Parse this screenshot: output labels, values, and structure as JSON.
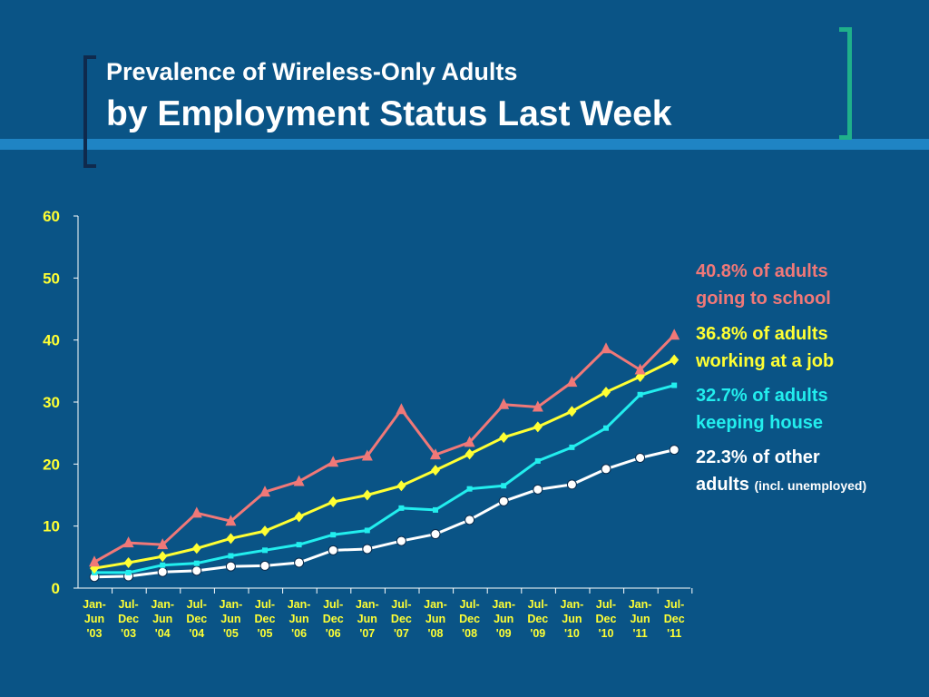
{
  "slide": {
    "title_line1": "Prevalence of Wireless-Only Adults",
    "title_line2": "by Employment Status Last Week"
  },
  "chart_data": {
    "type": "line",
    "ylim": [
      0,
      60
    ],
    "yticks": [
      "0",
      "10",
      "20",
      "30",
      "40",
      "50",
      "60"
    ],
    "categories": [
      [
        "Jan-",
        "Jun",
        "'03"
      ],
      [
        "Jul-",
        "Dec",
        "'03"
      ],
      [
        "Jan-",
        "Jun",
        "'04"
      ],
      [
        "Jul-",
        "Dec",
        "'04"
      ],
      [
        "Jan-",
        "Jun",
        "'05"
      ],
      [
        "Jul-",
        "Dec",
        "'05"
      ],
      [
        "Jan-",
        "Jun",
        "'06"
      ],
      [
        "Jul-",
        "Dec",
        "'06"
      ],
      [
        "Jan-",
        "Jun",
        "'07"
      ],
      [
        "Jul-",
        "Dec",
        "'07"
      ],
      [
        "Jan-",
        "Jun",
        "'08"
      ],
      [
        "Jul-",
        "Dec",
        "'08"
      ],
      [
        "Jan-",
        "Jun",
        "'09"
      ],
      [
        "Jul-",
        "Dec",
        "'09"
      ],
      [
        "Jan-",
        "Jun",
        "'10"
      ],
      [
        "Jul-",
        "Dec",
        "'10"
      ],
      [
        "Jan-",
        "Jun",
        "'11"
      ],
      [
        "Jul-",
        "Dec",
        "'11"
      ]
    ],
    "grid": false,
    "legend_placement": "right",
    "series": [
      {
        "color": "#f07878",
        "marker": "triangle",
        "values": [
          4.2,
          7.3,
          7.0,
          12.1,
          10.8,
          15.5,
          17.2,
          20.3,
          21.3,
          28.8,
          21.5,
          23.5,
          29.6,
          29.2,
          33.2,
          38.6,
          35.2,
          40.8
        ],
        "label_line1": "40.8% of adults",
        "label_line2": "going to school"
      },
      {
        "color": "#ffff33",
        "marker": "diamond",
        "values": [
          3.2,
          4.1,
          5.1,
          6.4,
          8.0,
          9.2,
          11.5,
          13.9,
          15.0,
          16.5,
          19.0,
          21.6,
          24.3,
          26.0,
          28.5,
          31.6,
          34.1,
          36.8
        ],
        "label_line1": "36.8% of adults",
        "label_line2": "working at a job"
      },
      {
        "color": "#22eeee",
        "marker": "square",
        "values": [
          2.5,
          2.5,
          3.7,
          4.0,
          5.2,
          6.1,
          7.0,
          8.6,
          9.3,
          12.9,
          12.6,
          16.0,
          16.5,
          20.5,
          22.7,
          25.8,
          31.2,
          32.7
        ],
        "label_line1": "32.7% of adults",
        "label_line2": "keeping house"
      },
      {
        "color": "#ffffff",
        "marker": "circle",
        "values": [
          1.8,
          1.9,
          2.6,
          2.8,
          3.5,
          3.6,
          4.1,
          6.1,
          6.3,
          7.6,
          8.7,
          11.0,
          14.0,
          15.9,
          16.7,
          19.2,
          21.0,
          22.3
        ],
        "label_line1": "22.3% of other",
        "label_line2": "adults",
        "label_note": "(incl. unemployed)"
      }
    ]
  }
}
